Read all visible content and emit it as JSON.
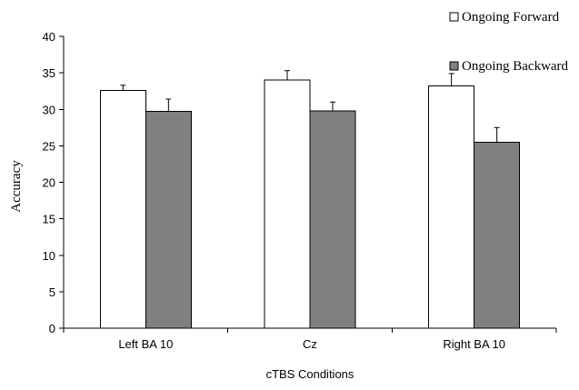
{
  "chart_data": {
    "type": "bar",
    "title": "",
    "xlabel": "cTBS Conditions",
    "ylabel": "Accuracy",
    "ylim": [
      0,
      40
    ],
    "yticks": [
      0,
      5,
      10,
      15,
      20,
      25,
      30,
      35,
      40
    ],
    "categories": [
      "Left BA 10",
      "Cz",
      "Right BA 10"
    ],
    "legend_position": "top-right",
    "grid": false,
    "series": [
      {
        "name": "Ongoing Forward",
        "color": "#ffffff",
        "values": [
          32.6,
          34.0,
          33.2
        ],
        "errors": [
          0.7,
          1.3,
          1.7
        ]
      },
      {
        "name": "Ongoing Backward",
        "color": "#808080",
        "values": [
          29.7,
          29.8,
          25.5
        ],
        "errors": [
          1.7,
          1.2,
          2.0
        ]
      }
    ]
  }
}
